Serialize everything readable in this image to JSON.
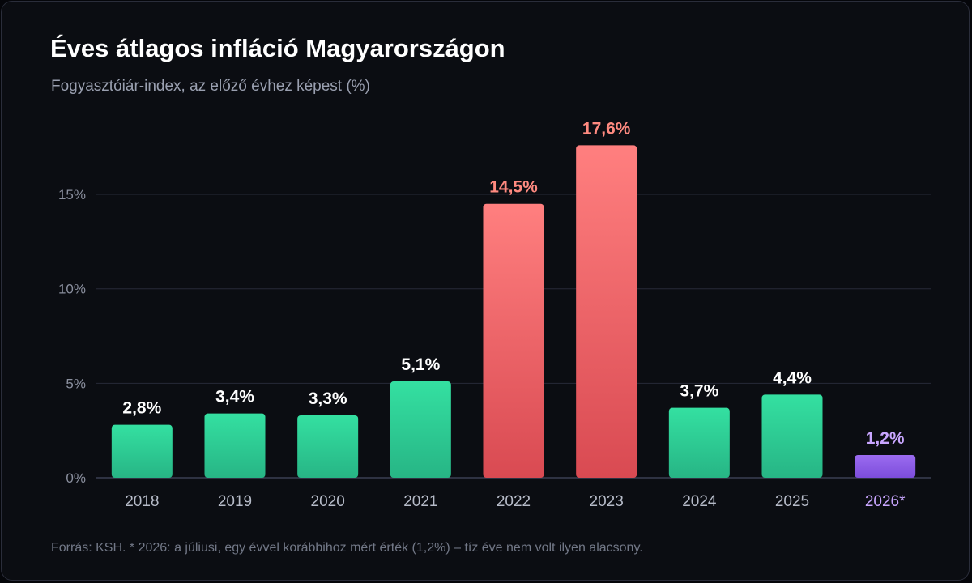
{
  "title": "Éves átlagos infláció Magyarországon",
  "subtitle": "Fogyasztóiár-index, az előző évhez képest (%)",
  "footnote": "Forrás: KSH. * 2026: a júliusi, egy évvel korábbihoz mért érték (1,2%) – tíz éve nem volt ilyen alacsony.",
  "colors": {
    "normal_top": "#34e0a1",
    "normal_bottom": "#27b585",
    "high_top": "#ff7f7f",
    "high_bottom": "#d94a52",
    "special_top": "#9b6bf0",
    "special_bottom": "#7c4ddb",
    "label_normal": "#ffffff",
    "label_high": "#ff8a80",
    "label_special": "#c9a6ff",
    "grid": "#272a38",
    "tick": "#8a8f9e",
    "category": "#b6bbc8",
    "category_special": "#c9a6ff"
  },
  "chart_data": {
    "type": "bar",
    "title": "Éves átlagos infláció Magyarországon",
    "subtitle": "Fogyasztóiár-index, az előző évhez képest (%)",
    "categories": [
      "2018",
      "2019",
      "2020",
      "2021",
      "2022",
      "2023",
      "2024",
      "2025",
      "2026*"
    ],
    "values": [
      2.8,
      3.4,
      3.3,
      5.1,
      14.5,
      17.6,
      3.7,
      4.4,
      1.2
    ],
    "value_labels": [
      "2,8%",
      "3,4%",
      "3,3%",
      "5,1%",
      "14,5%",
      "17,6%",
      "3,7%",
      "4,4%",
      "1,2%"
    ],
    "highlight": [
      "normal",
      "normal",
      "normal",
      "normal",
      "high",
      "high",
      "normal",
      "normal",
      "special"
    ],
    "yticks": [
      0,
      5,
      10,
      15
    ],
    "ytick_labels": [
      "0%",
      "5%",
      "10%",
      "15%"
    ],
    "ylim": [
      0,
      18.8
    ],
    "grid": true,
    "legend": "none"
  }
}
